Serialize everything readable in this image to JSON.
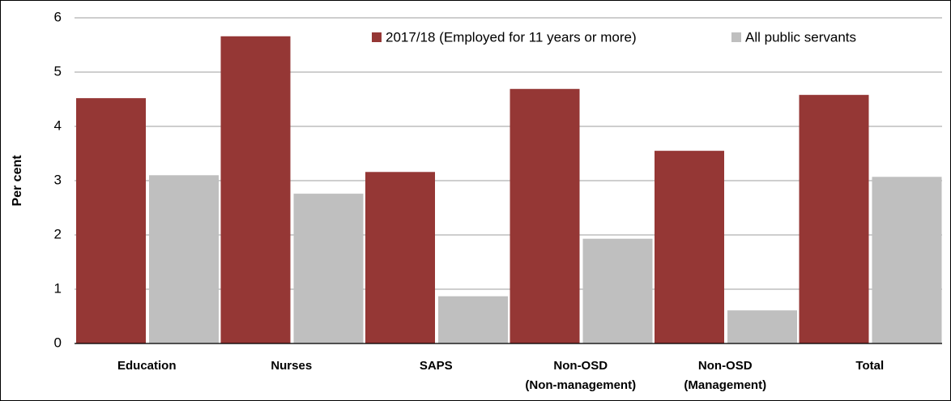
{
  "chart_data": {
    "type": "bar",
    "y_label": "Per cent",
    "categories": [
      [
        "Education"
      ],
      [
        "Nurses"
      ],
      [
        "SAPS"
      ],
      [
        "Non-OSD",
        "(Non-management)"
      ],
      [
        "Non-OSD",
        "(Management)"
      ],
      [
        "Total"
      ]
    ],
    "series": [
      {
        "name": "2017/18 (Employed for 11 years or more)",
        "color": "#953735",
        "values": [
          4.52,
          5.66,
          3.16,
          4.69,
          3.55,
          4.58
        ]
      },
      {
        "name": "All public servants",
        "color": "#bfbfbf",
        "values": [
          3.1,
          2.76,
          0.87,
          1.93,
          0.61,
          3.07
        ]
      }
    ],
    "ylim": [
      0,
      6
    ],
    "yticks": [
      0,
      1,
      2,
      3,
      4,
      5,
      6
    ],
    "grid": true,
    "legend": "top-right"
  }
}
